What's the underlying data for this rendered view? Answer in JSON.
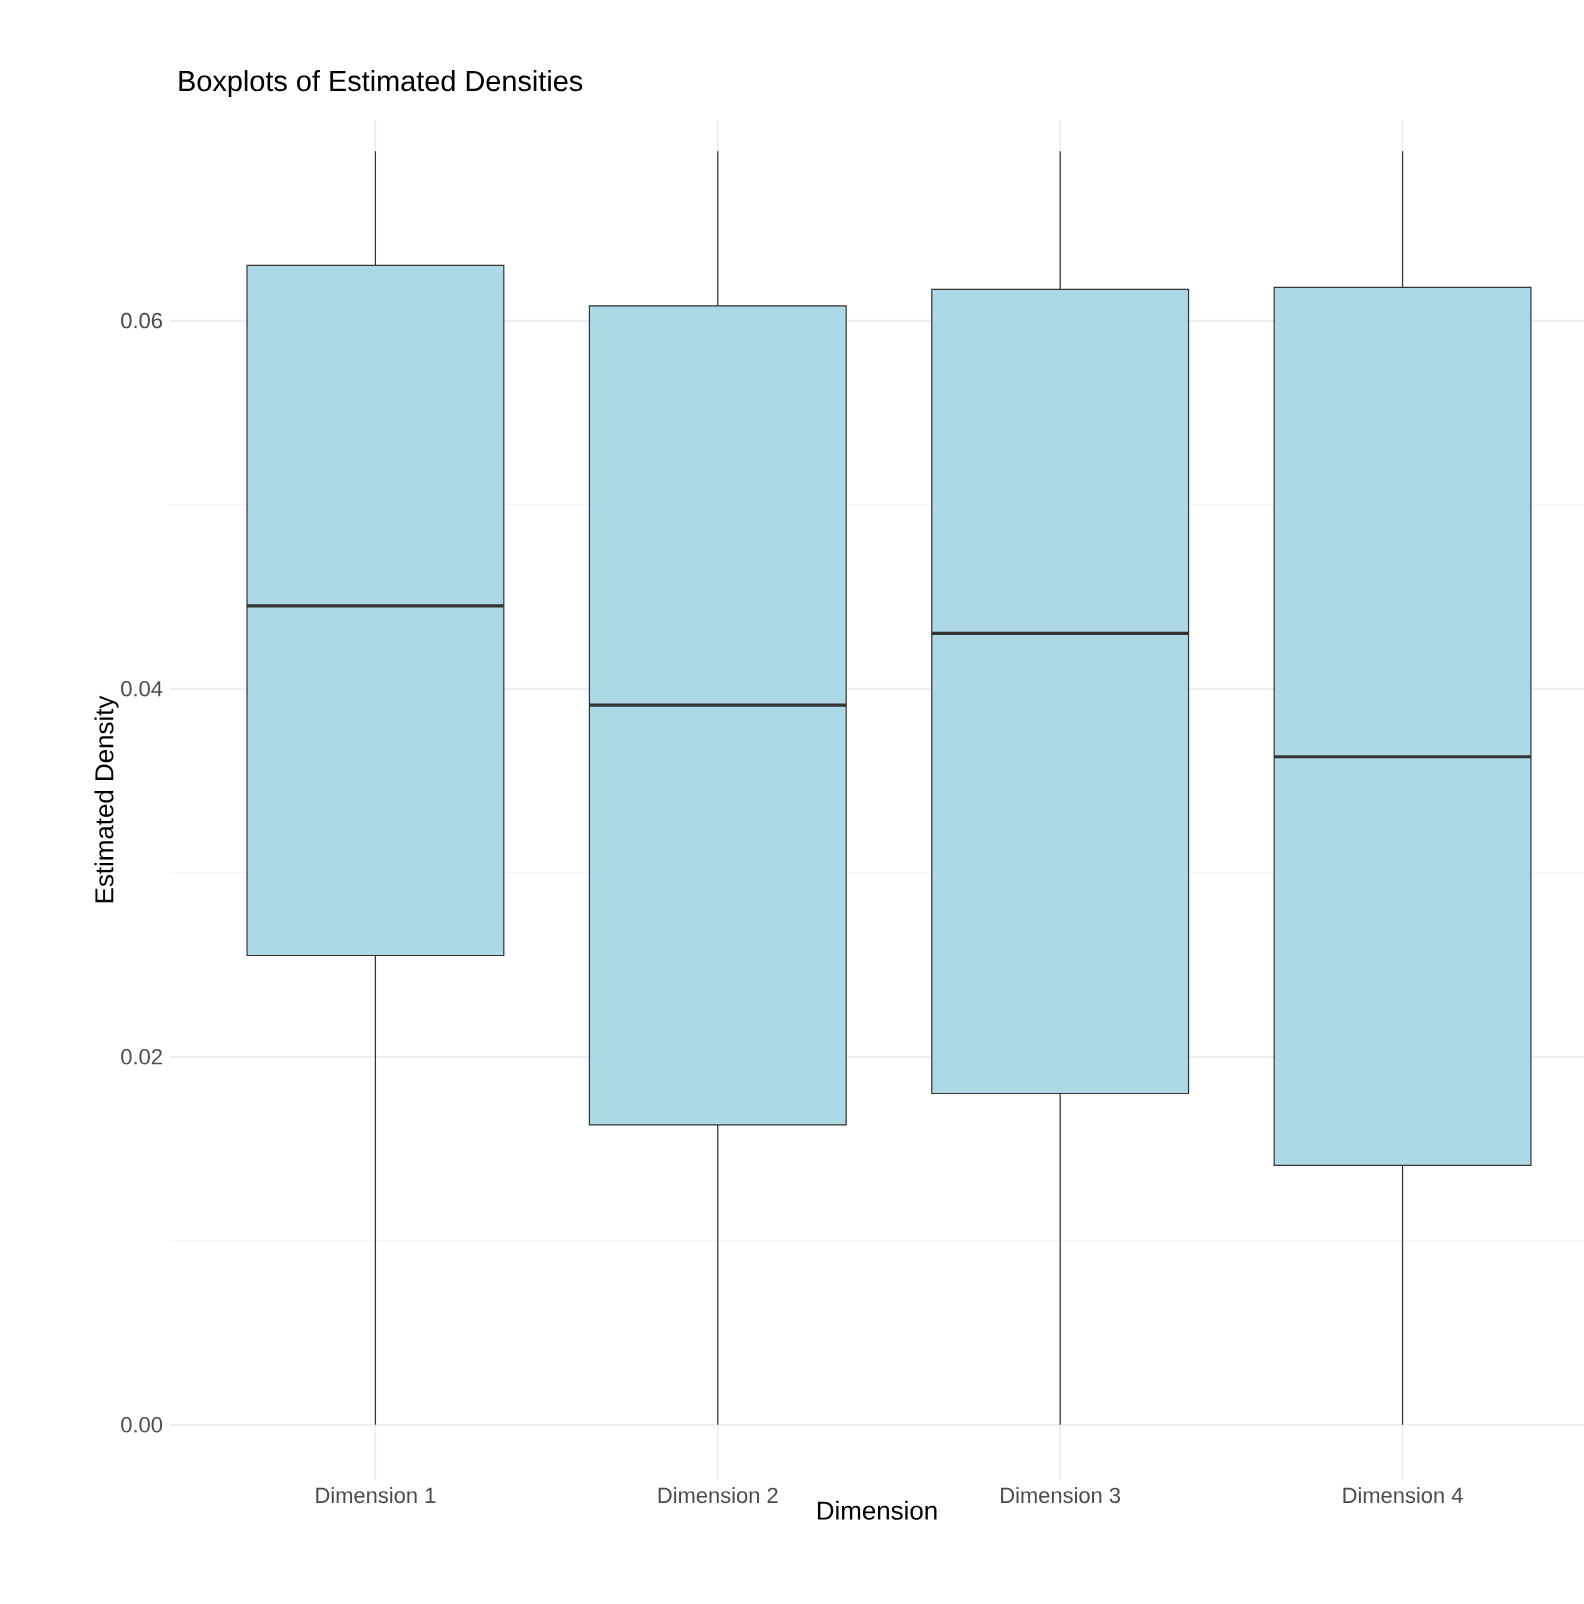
{
  "chart_data": {
    "type": "box",
    "title": "Boxplots of Estimated Densities",
    "xlabel": "Dimension",
    "ylabel": "Estimated Density",
    "categories": [
      "Dimension 1",
      "Dimension 2",
      "Dimension 3",
      "Dimension 4"
    ],
    "boxes": [
      {
        "low": 0,
        "q1": 0.0255,
        "median": 0.0445,
        "q3": 0.063,
        "high": 0.0692
      },
      {
        "low": 0,
        "q1": 0.0163,
        "median": 0.0391,
        "q3": 0.0608,
        "high": 0.0692
      },
      {
        "low": 0,
        "q1": 0.018,
        "median": 0.043,
        "q3": 0.0617,
        "high": 0.0692
      },
      {
        "low": 0,
        "q1": 0.0141,
        "median": 0.0363,
        "q3": 0.0618,
        "high": 0.0692
      }
    ],
    "color": "#add8e6",
    "ylim": [
      -0.003,
      0.0709
    ],
    "yticks": [
      {
        "value": 0,
        "label": "0.00"
      },
      {
        "value": 0.02,
        "label": "0.02"
      },
      {
        "value": 0.04,
        "label": "0.04"
      },
      {
        "value": 0.06,
        "label": "0.06"
      }
    ],
    "grid": true
  }
}
